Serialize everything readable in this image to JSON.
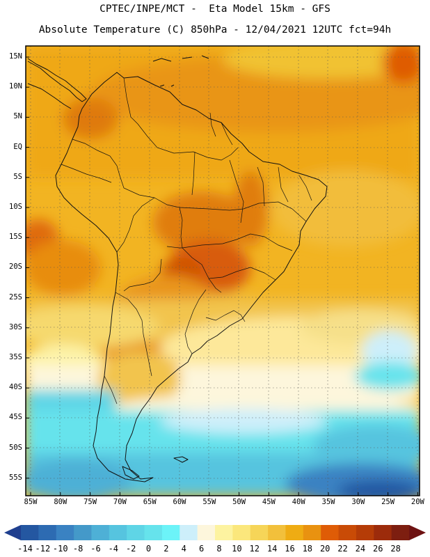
{
  "header": {
    "line1": "CPTEC/INPE/MCT -  Eta Model 15km - GFS",
    "line2": "Absolute Temperature (C) 850hPa - 12/04/2021 12UTC fct=94h"
  },
  "map": {
    "lat_labels": [
      "15N",
      "10N",
      "5N",
      "EQ",
      "5S",
      "10S",
      "15S",
      "20S",
      "25S",
      "30S",
      "35S",
      "40S",
      "45S",
      "50S",
      "55S"
    ],
    "lon_labels": [
      "85W",
      "80W",
      "75W",
      "70W",
      "65W",
      "60W",
      "55W",
      "50W",
      "45W",
      "40W",
      "35W",
      "30W",
      "25W",
      "20W"
    ]
  },
  "colorbar": {
    "labels": [
      "-14",
      "-12",
      "-10",
      "-8",
      "-6",
      "-4",
      "-2",
      "0",
      "2",
      "4",
      "6",
      "8",
      "10",
      "12",
      "14",
      "16",
      "18",
      "20",
      "22",
      "24",
      "26",
      "28"
    ],
    "colors": [
      "#1f3f8f",
      "#2457a1",
      "#2d6bb2",
      "#3a82c2",
      "#4499c9",
      "#4eb0d6",
      "#56c4df",
      "#5fd5e6",
      "#66e3ec",
      "#6cf3f8",
      "#cdeffa",
      "#fdf6dc",
      "#fdf3a0",
      "#fbe77c",
      "#f6d558",
      "#f2c03b",
      "#efac13",
      "#e99210",
      "#df5c06",
      "#c94b06",
      "#b53c07",
      "#9c2b0b",
      "#7d1e10",
      "#6e1212"
    ]
  }
}
